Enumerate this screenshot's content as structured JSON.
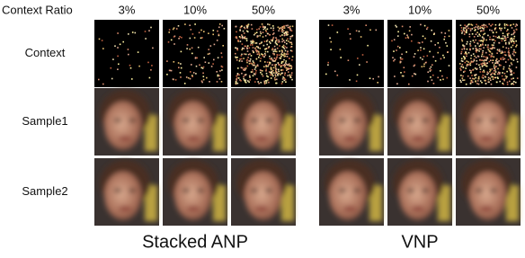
{
  "header": {
    "label": "Context Ratio"
  },
  "rows": [
    "Context",
    "Sample1",
    "Sample2"
  ],
  "groups": [
    {
      "caption": "Stacked ANP",
      "ratios": [
        "3%",
        "10%",
        "50%"
      ]
    },
    {
      "caption": "VNP",
      "ratios": [
        "3%",
        "10%",
        "50%"
      ]
    }
  ]
}
